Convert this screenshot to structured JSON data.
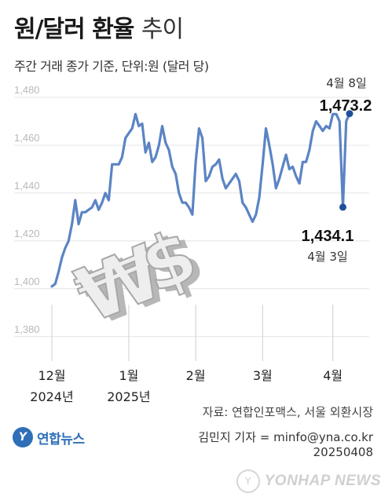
{
  "title_bold": "원/달러 환율",
  "title_light": "추이",
  "subtitle": "주간 거래 종가 기준, 단위:원 (달러 당)",
  "source": "자료: 연합인포맥스, 서울 외환시장",
  "reporter": "김민지 기자 = minfo@yna.co.kr",
  "date": "20250408",
  "logo_text": "연합뉴스",
  "watermark_text": "YONHAP NEWS",
  "colors": {
    "line": "#5b84c4",
    "marker": "#1f4f9b",
    "text_dark": "#111111",
    "grid": "#e4e4e4"
  },
  "illustration": "won-dollar-symbol-3d-icon",
  "chart_data": {
    "type": "line",
    "title": "원/달러 환율 추이",
    "ylim": [
      1375,
      1480
    ],
    "y_ticks": [
      "1,380",
      "1,400",
      "1,420",
      "1,440",
      "1,460",
      "1,480"
    ],
    "y_tick_values": [
      1380,
      1400,
      1420,
      1440,
      1460,
      1480
    ],
    "x_tick_labels": [
      {
        "label": "12월",
        "sub": "2024년",
        "x": 0
      },
      {
        "label": "1월",
        "sub": "2025년",
        "x": 23
      },
      {
        "label": "2월",
        "sub": "",
        "x": 43
      },
      {
        "label": "3월",
        "sub": "",
        "x": 63
      },
      {
        "label": "4월",
        "sub": "",
        "x": 84
      }
    ],
    "series": [
      {
        "values": [
          1401,
          1402,
          1407,
          1413,
          1417,
          1420,
          1427,
          1437,
          1427,
          1432,
          1432,
          1433,
          1434,
          1437,
          1433,
          1436,
          1440,
          1437,
          1452,
          1452,
          1452,
          1455,
          1463,
          1465,
          1467,
          1473,
          1468,
          1469,
          1457,
          1461,
          1453,
          1455,
          1460,
          1468,
          1461,
          1458,
          1451,
          1448,
          1440,
          1436,
          1436,
          1434,
          1431,
          1453,
          1467,
          1463,
          1445,
          1447,
          1451,
          1452,
          1454,
          1446,
          1442,
          1444,
          1446,
          1448,
          1445,
          1436,
          1434,
          1431,
          1428,
          1431,
          1438,
          1452,
          1467,
          1460,
          1452,
          1442,
          1446,
          1451,
          1456,
          1450,
          1451,
          1447,
          1444,
          1453,
          1453,
          1458,
          1466,
          1470,
          1468,
          1466,
          1468,
          1467,
          1473,
          1473,
          1470,
          1434.1,
          1470,
          1473.2
        ]
      }
    ],
    "annotations": [
      {
        "value": "1,473.2",
        "date": "4월 8일",
        "index": 89
      },
      {
        "value": "1,434.1",
        "date": "4월 3일",
        "index": 87
      }
    ]
  }
}
